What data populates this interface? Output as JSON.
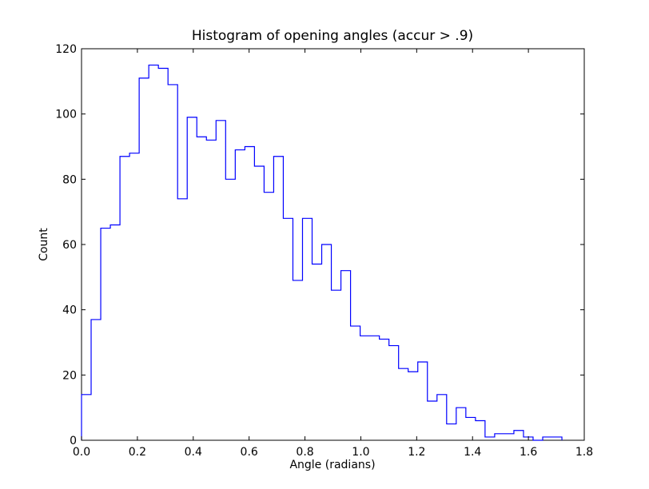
{
  "chart_data": {
    "type": "histogram",
    "title": "Histogram of opening angles (accur > .9)",
    "xlabel": "Angle (radians)",
    "ylabel": "Count",
    "xlim": [
      0.0,
      1.8
    ],
    "ylim": [
      0,
      120
    ],
    "x_ticks": [
      "0.0",
      "0.2",
      "0.4",
      "0.6",
      "0.8",
      "1.0",
      "1.2",
      "1.4",
      "1.6",
      "1.8"
    ],
    "y_ticks": [
      "0",
      "20",
      "40",
      "60",
      "80",
      "100",
      "120"
    ],
    "grid": false,
    "bin_start": 0.0,
    "bin_width": 0.0344,
    "counts": [
      14,
      37,
      65,
      66,
      87,
      88,
      111,
      115,
      114,
      109,
      74,
      99,
      93,
      92,
      98,
      80,
      89,
      90,
      84,
      76,
      87,
      68,
      49,
      68,
      54,
      60,
      46,
      52,
      35,
      32,
      32,
      31,
      29,
      22,
      21,
      24,
      12,
      14,
      5,
      10,
      7,
      6,
      1,
      2,
      2,
      3,
      1,
      0,
      1,
      1
    ],
    "series_color": "#0000ff"
  }
}
